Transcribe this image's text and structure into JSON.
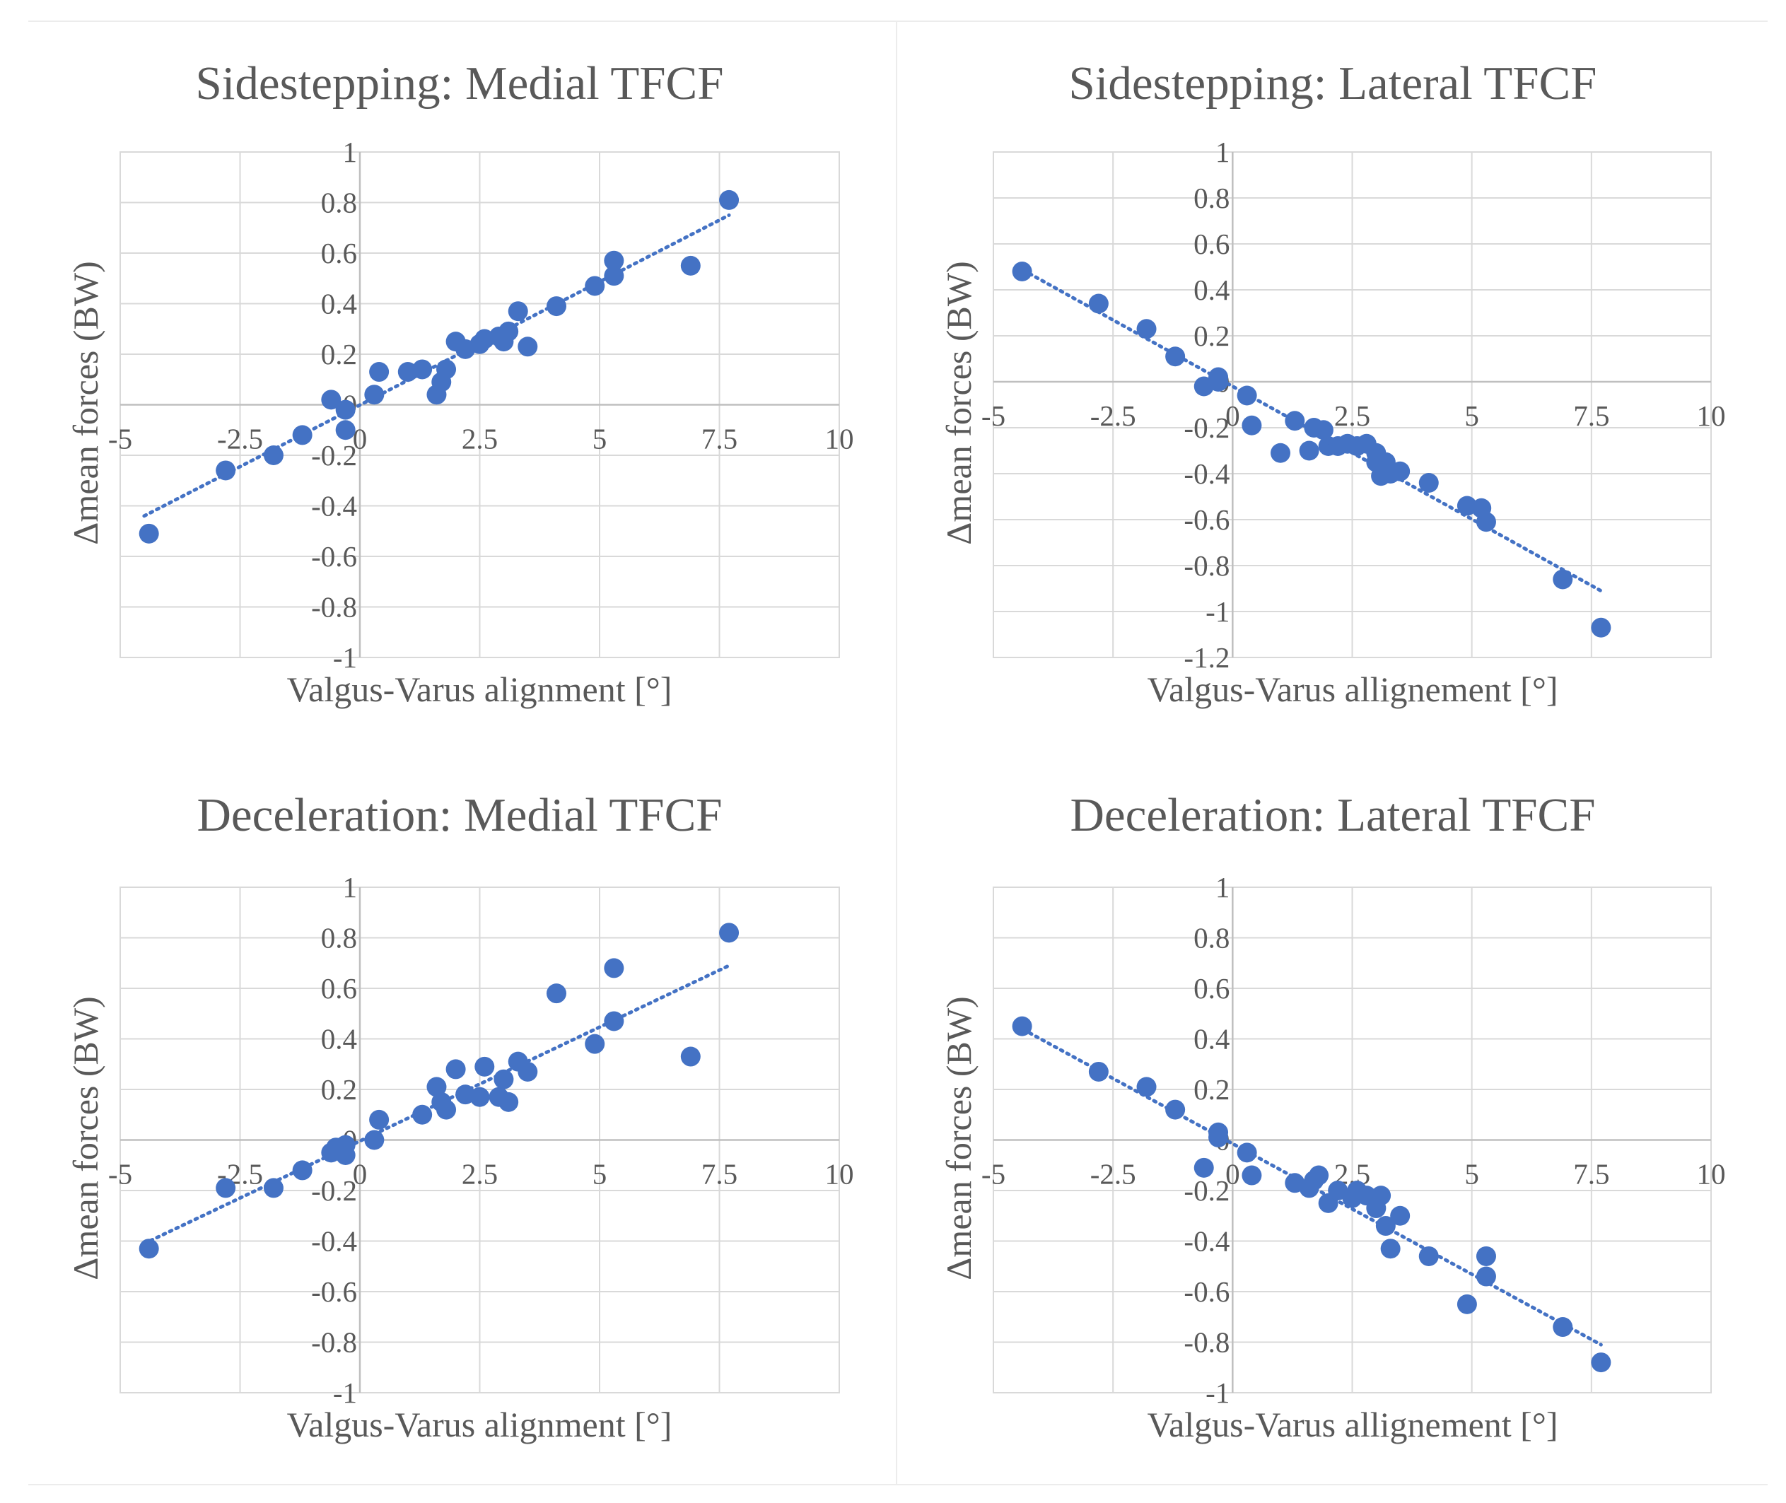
{
  "chart_data": [
    {
      "type": "scatter",
      "title": "Sidestepping: Medial TFCF",
      "xlabel": "Valgus-Varus alignment [°]",
      "ylabel": "Δmean forces (BW)",
      "xlim": [
        -5,
        10
      ],
      "ylim": [
        -1,
        1
      ],
      "xticks": [
        -5,
        -2.5,
        0,
        2.5,
        5,
        7.5,
        10
      ],
      "xtick_labels": [
        "-5",
        "-2.5",
        "0",
        "2.5",
        "5",
        "7.5",
        "10"
      ],
      "yticks": [
        -1,
        -0.8,
        -0.6,
        -0.4,
        -0.2,
        0,
        0.2,
        0.4,
        0.6,
        0.8,
        1
      ],
      "ytick_labels": [
        "-1",
        "-0.8",
        "-0.6",
        "-0.4",
        "-0.2",
        "0",
        "0.2",
        "0.4",
        "0.6",
        "0.8",
        "1"
      ],
      "trendline": {
        "type": "linear",
        "x": [
          -4.5,
          7.7
        ],
        "y": [
          -0.44,
          0.75
        ]
      },
      "points": [
        [
          -4.4,
          -0.51
        ],
        [
          -2.8,
          -0.26
        ],
        [
          -1.8,
          -0.2
        ],
        [
          -1.2,
          -0.12
        ],
        [
          -0.6,
          0.02
        ],
        [
          -0.3,
          -0.02
        ],
        [
          -0.3,
          -0.1
        ],
        [
          0.3,
          0.04
        ],
        [
          0.4,
          0.13
        ],
        [
          1.0,
          0.13
        ],
        [
          1.3,
          0.14
        ],
        [
          1.6,
          0.04
        ],
        [
          1.7,
          0.09
        ],
        [
          1.8,
          0.14
        ],
        [
          2.0,
          0.25
        ],
        [
          2.2,
          0.22
        ],
        [
          2.5,
          0.24
        ],
        [
          2.6,
          0.26
        ],
        [
          2.9,
          0.27
        ],
        [
          3.0,
          0.25
        ],
        [
          3.1,
          0.29
        ],
        [
          3.3,
          0.37
        ],
        [
          3.5,
          0.23
        ],
        [
          4.1,
          0.39
        ],
        [
          4.9,
          0.47
        ],
        [
          5.3,
          0.51
        ],
        [
          5.3,
          0.57
        ],
        [
          6.9,
          0.55
        ],
        [
          7.7,
          0.81
        ]
      ]
    },
    {
      "type": "scatter",
      "title": "Sidestepping: Lateral TFCF",
      "xlabel": "Valgus-Varus allignement [°]",
      "ylabel": "Δmean forces (BW)",
      "xlim": [
        -5,
        10
      ],
      "ylim": [
        -1.2,
        1
      ],
      "xticks": [
        -5,
        -2.5,
        0,
        2.5,
        5,
        7.5,
        10
      ],
      "xtick_labels": [
        "-5",
        "-2.5",
        "0",
        "2.5",
        "5",
        "7.5",
        "10"
      ],
      "yticks": [
        -1.2,
        -1,
        -0.8,
        -0.6,
        -0.4,
        -0.2,
        0,
        0.2,
        0.4,
        0.6,
        0.8,
        1
      ],
      "ytick_labels": [
        "-1.2",
        "-1",
        "-0.8",
        "-0.6",
        "-0.4",
        "-0.2",
        "0",
        "0.2",
        "0.4",
        "0.6",
        "0.8",
        "1"
      ],
      "trendline": {
        "type": "linear",
        "x": [
          -4.5,
          7.7
        ],
        "y": [
          0.5,
          -0.91
        ]
      },
      "points": [
        [
          -4.4,
          0.48
        ],
        [
          -2.8,
          0.34
        ],
        [
          -1.8,
          0.23
        ],
        [
          -1.2,
          0.11
        ],
        [
          -0.6,
          -0.02
        ],
        [
          -0.3,
          0.02
        ],
        [
          -0.3,
          0.0
        ],
        [
          0.3,
          -0.06
        ],
        [
          0.4,
          -0.19
        ],
        [
          1.0,
          -0.31
        ],
        [
          1.3,
          -0.17
        ],
        [
          1.6,
          -0.3
        ],
        [
          1.7,
          -0.2
        ],
        [
          1.9,
          -0.21
        ],
        [
          2.0,
          -0.28
        ],
        [
          2.2,
          -0.28
        ],
        [
          2.4,
          -0.27
        ],
        [
          2.6,
          -0.28
        ],
        [
          2.8,
          -0.27
        ],
        [
          3.0,
          -0.31
        ],
        [
          3.0,
          -0.35
        ],
        [
          3.1,
          -0.41
        ],
        [
          3.2,
          -0.35
        ],
        [
          3.3,
          -0.4
        ],
        [
          3.5,
          -0.39
        ],
        [
          4.1,
          -0.44
        ],
        [
          4.9,
          -0.54
        ],
        [
          5.2,
          -0.55
        ],
        [
          5.3,
          -0.61
        ],
        [
          6.9,
          -0.86
        ],
        [
          7.7,
          -1.07
        ]
      ]
    },
    {
      "type": "scatter",
      "title": "Deceleration: Medial TFCF",
      "xlabel": "Valgus-Varus alignment [°]",
      "ylabel": "Δmean forces (BW)",
      "xlim": [
        -5,
        10
      ],
      "ylim": [
        -1,
        1
      ],
      "xticks": [
        -5,
        -2.5,
        0,
        2.5,
        5,
        7.5,
        10
      ],
      "xtick_labels": [
        "-5",
        "-2.5",
        "0",
        "2.5",
        "5",
        "7.5",
        "10"
      ],
      "yticks": [
        -1,
        -0.8,
        -0.6,
        -0.4,
        -0.2,
        0,
        0.2,
        0.4,
        0.6,
        0.8,
        1
      ],
      "ytick_labels": [
        "-1",
        "-0.8",
        "-0.6",
        "-0.4",
        "-0.2",
        "0",
        "0.2",
        "0.4",
        "0.6",
        "0.8",
        "1"
      ],
      "trendline": {
        "type": "linear",
        "x": [
          -4.5,
          7.7
        ],
        "y": [
          -0.41,
          0.69
        ]
      },
      "points": [
        [
          -4.4,
          -0.43
        ],
        [
          -2.8,
          -0.19
        ],
        [
          -1.8,
          -0.19
        ],
        [
          -1.2,
          -0.12
        ],
        [
          -0.6,
          -0.05
        ],
        [
          -0.5,
          -0.03
        ],
        [
          -0.3,
          -0.06
        ],
        [
          -0.3,
          -0.02
        ],
        [
          0.3,
          0.0
        ],
        [
          0.4,
          0.08
        ],
        [
          1.3,
          0.1
        ],
        [
          1.6,
          0.21
        ],
        [
          1.7,
          0.15
        ],
        [
          1.8,
          0.12
        ],
        [
          2.0,
          0.28
        ],
        [
          2.2,
          0.18
        ],
        [
          2.5,
          0.17
        ],
        [
          2.6,
          0.29
        ],
        [
          2.9,
          0.17
        ],
        [
          3.0,
          0.24
        ],
        [
          3.1,
          0.15
        ],
        [
          3.3,
          0.31
        ],
        [
          3.5,
          0.27
        ],
        [
          4.1,
          0.58
        ],
        [
          4.9,
          0.38
        ],
        [
          5.3,
          0.47
        ],
        [
          5.3,
          0.68
        ],
        [
          6.9,
          0.33
        ],
        [
          7.7,
          0.82
        ]
      ]
    },
    {
      "type": "scatter",
      "title": "Deceleration: Lateral TFCF",
      "xlabel": "Valgus-Varus allignement [°]",
      "ylabel": "Δmean forces (BW)",
      "xlim": [
        -5,
        10
      ],
      "ylim": [
        -1,
        1
      ],
      "xticks": [
        -5,
        -2.5,
        0,
        2.5,
        5,
        7.5,
        10
      ],
      "xtick_labels": [
        "-5",
        "-2.5",
        "0",
        "2.5",
        "5",
        "7.5",
        "10"
      ],
      "yticks": [
        -1,
        -0.8,
        -0.6,
        -0.4,
        -0.2,
        0,
        0.2,
        0.4,
        0.6,
        0.8,
        1
      ],
      "ytick_labels": [
        "-1",
        "-0.8",
        "-0.6",
        "-0.4",
        "-0.2",
        "0",
        "0.2",
        "0.4",
        "0.6",
        "0.8",
        "1"
      ],
      "trendline": {
        "type": "linear",
        "x": [
          -4.5,
          7.7
        ],
        "y": [
          0.45,
          -0.81
        ]
      },
      "points": [
        [
          -4.4,
          0.45
        ],
        [
          -2.8,
          0.27
        ],
        [
          -1.8,
          0.21
        ],
        [
          -1.2,
          0.12
        ],
        [
          -0.6,
          -0.11
        ],
        [
          -0.3,
          0.01
        ],
        [
          -0.3,
          0.03
        ],
        [
          0.3,
          -0.05
        ],
        [
          0.4,
          -0.14
        ],
        [
          1.3,
          -0.17
        ],
        [
          1.6,
          -0.19
        ],
        [
          1.7,
          -0.16
        ],
        [
          1.8,
          -0.14
        ],
        [
          2.0,
          -0.25
        ],
        [
          2.2,
          -0.2
        ],
        [
          2.5,
          -0.23
        ],
        [
          2.6,
          -0.2
        ],
        [
          2.8,
          -0.22
        ],
        [
          3.0,
          -0.27
        ],
        [
          3.1,
          -0.22
        ],
        [
          3.2,
          -0.34
        ],
        [
          3.3,
          -0.43
        ],
        [
          3.5,
          -0.3
        ],
        [
          4.1,
          -0.46
        ],
        [
          4.9,
          -0.65
        ],
        [
          5.3,
          -0.46
        ],
        [
          5.3,
          -0.54
        ],
        [
          6.9,
          -0.74
        ],
        [
          7.7,
          -0.88
        ]
      ]
    }
  ]
}
